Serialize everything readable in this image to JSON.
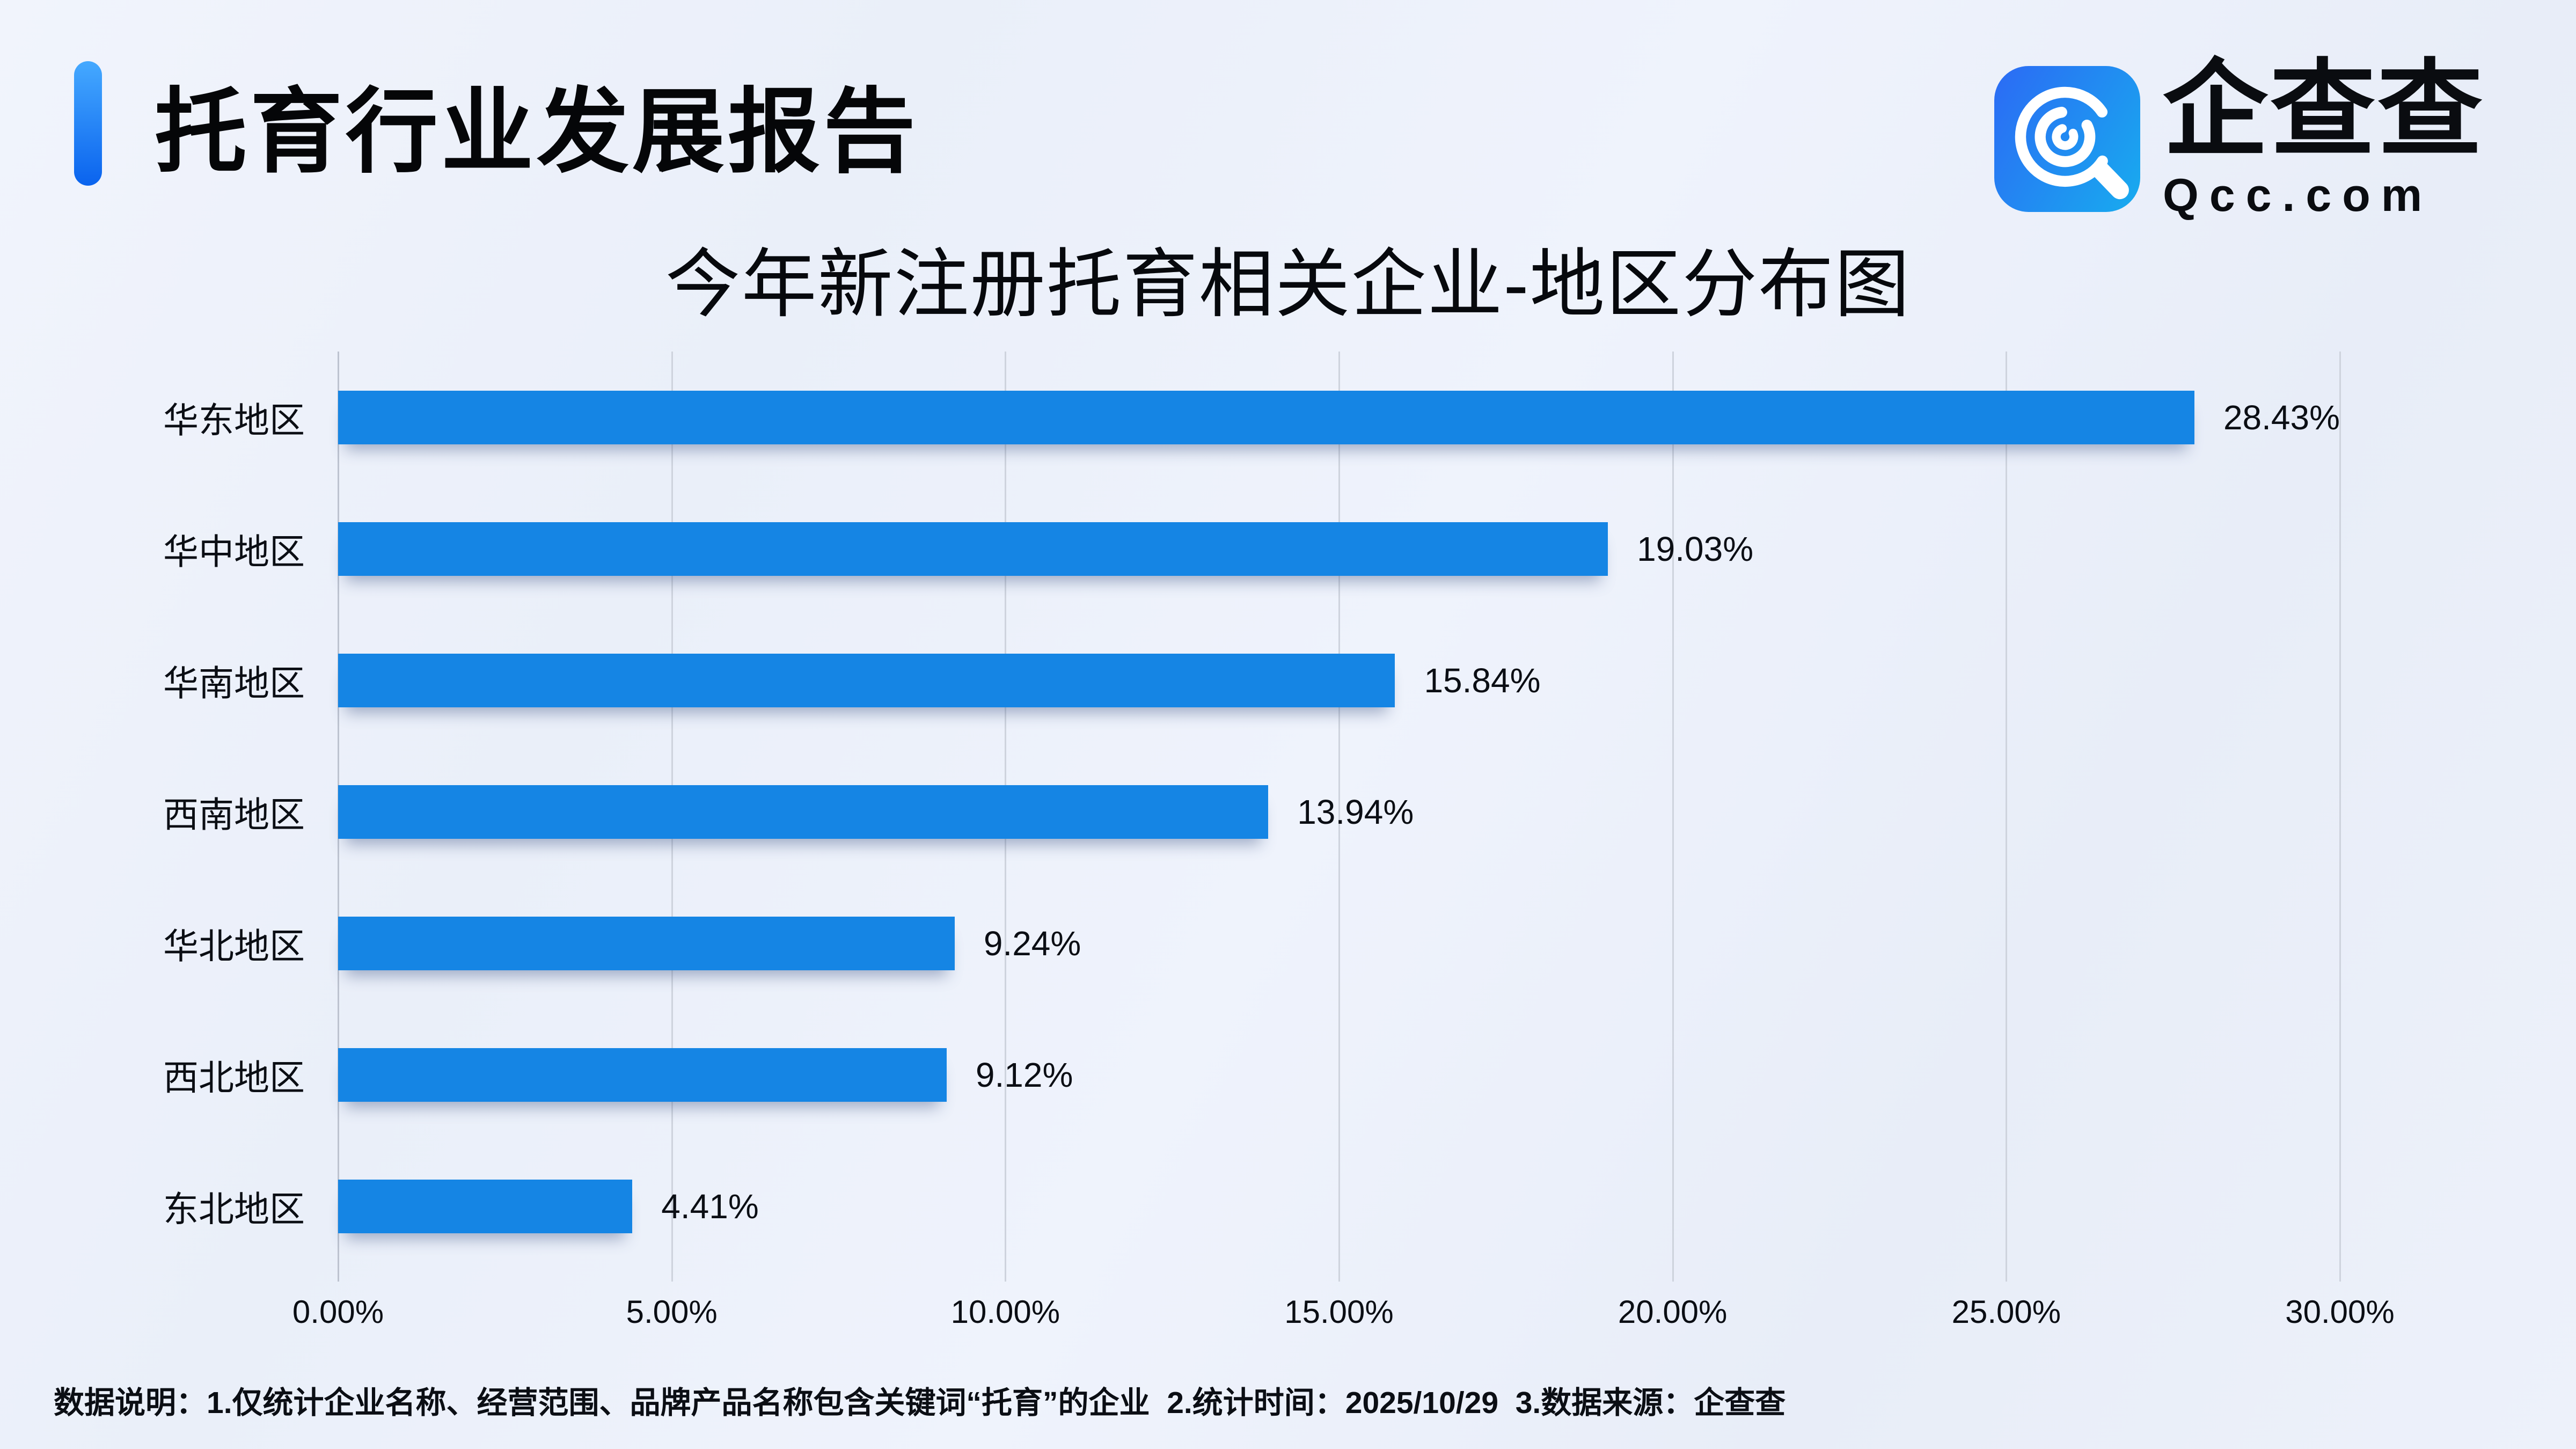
{
  "header": {
    "title": "托育行业发展报告"
  },
  "logo": {
    "brand": "企查查",
    "domain": "Qcc.com",
    "icon": "qcc-magnifier-icon"
  },
  "chart_data": {
    "type": "bar",
    "orientation": "horizontal",
    "title": "今年新注册托育相关企业-地区分布图",
    "categories": [
      "华东地区",
      "华中地区",
      "华南地区",
      "西南地区",
      "华北地区",
      "西北地区",
      "东北地区"
    ],
    "values": [
      28.43,
      19.03,
      15.84,
      13.94,
      9.24,
      9.12,
      4.41
    ],
    "value_labels": [
      "28.43%",
      "19.03%",
      "15.84%",
      "13.94%",
      "9.24%",
      "9.12%",
      "4.41%"
    ],
    "x_ticks": [
      "0.00%",
      "5.00%",
      "10.00%",
      "15.00%",
      "20.00%",
      "25.00%",
      "30.00%"
    ],
    "xlim": [
      0,
      30
    ],
    "grid": "vertical-gridlines",
    "legend": "none",
    "bar_color": "#1585e4"
  },
  "footer": {
    "note": "数据说明：1.仅统计企业名称、经营范围、品牌产品名称包含关键词“托育”的企业  2.统计时间：2025/10/29  3.数据来源：企查查"
  },
  "colors": {
    "bar": "#1585e4",
    "accent": "#0a63ee",
    "accent_light": "#45a9ff",
    "logo_gradient_left": "#2a6ff4",
    "logo_gradient_right": "#19a7ef",
    "background": "#edf1fa",
    "gridline": "#ced3dd"
  }
}
